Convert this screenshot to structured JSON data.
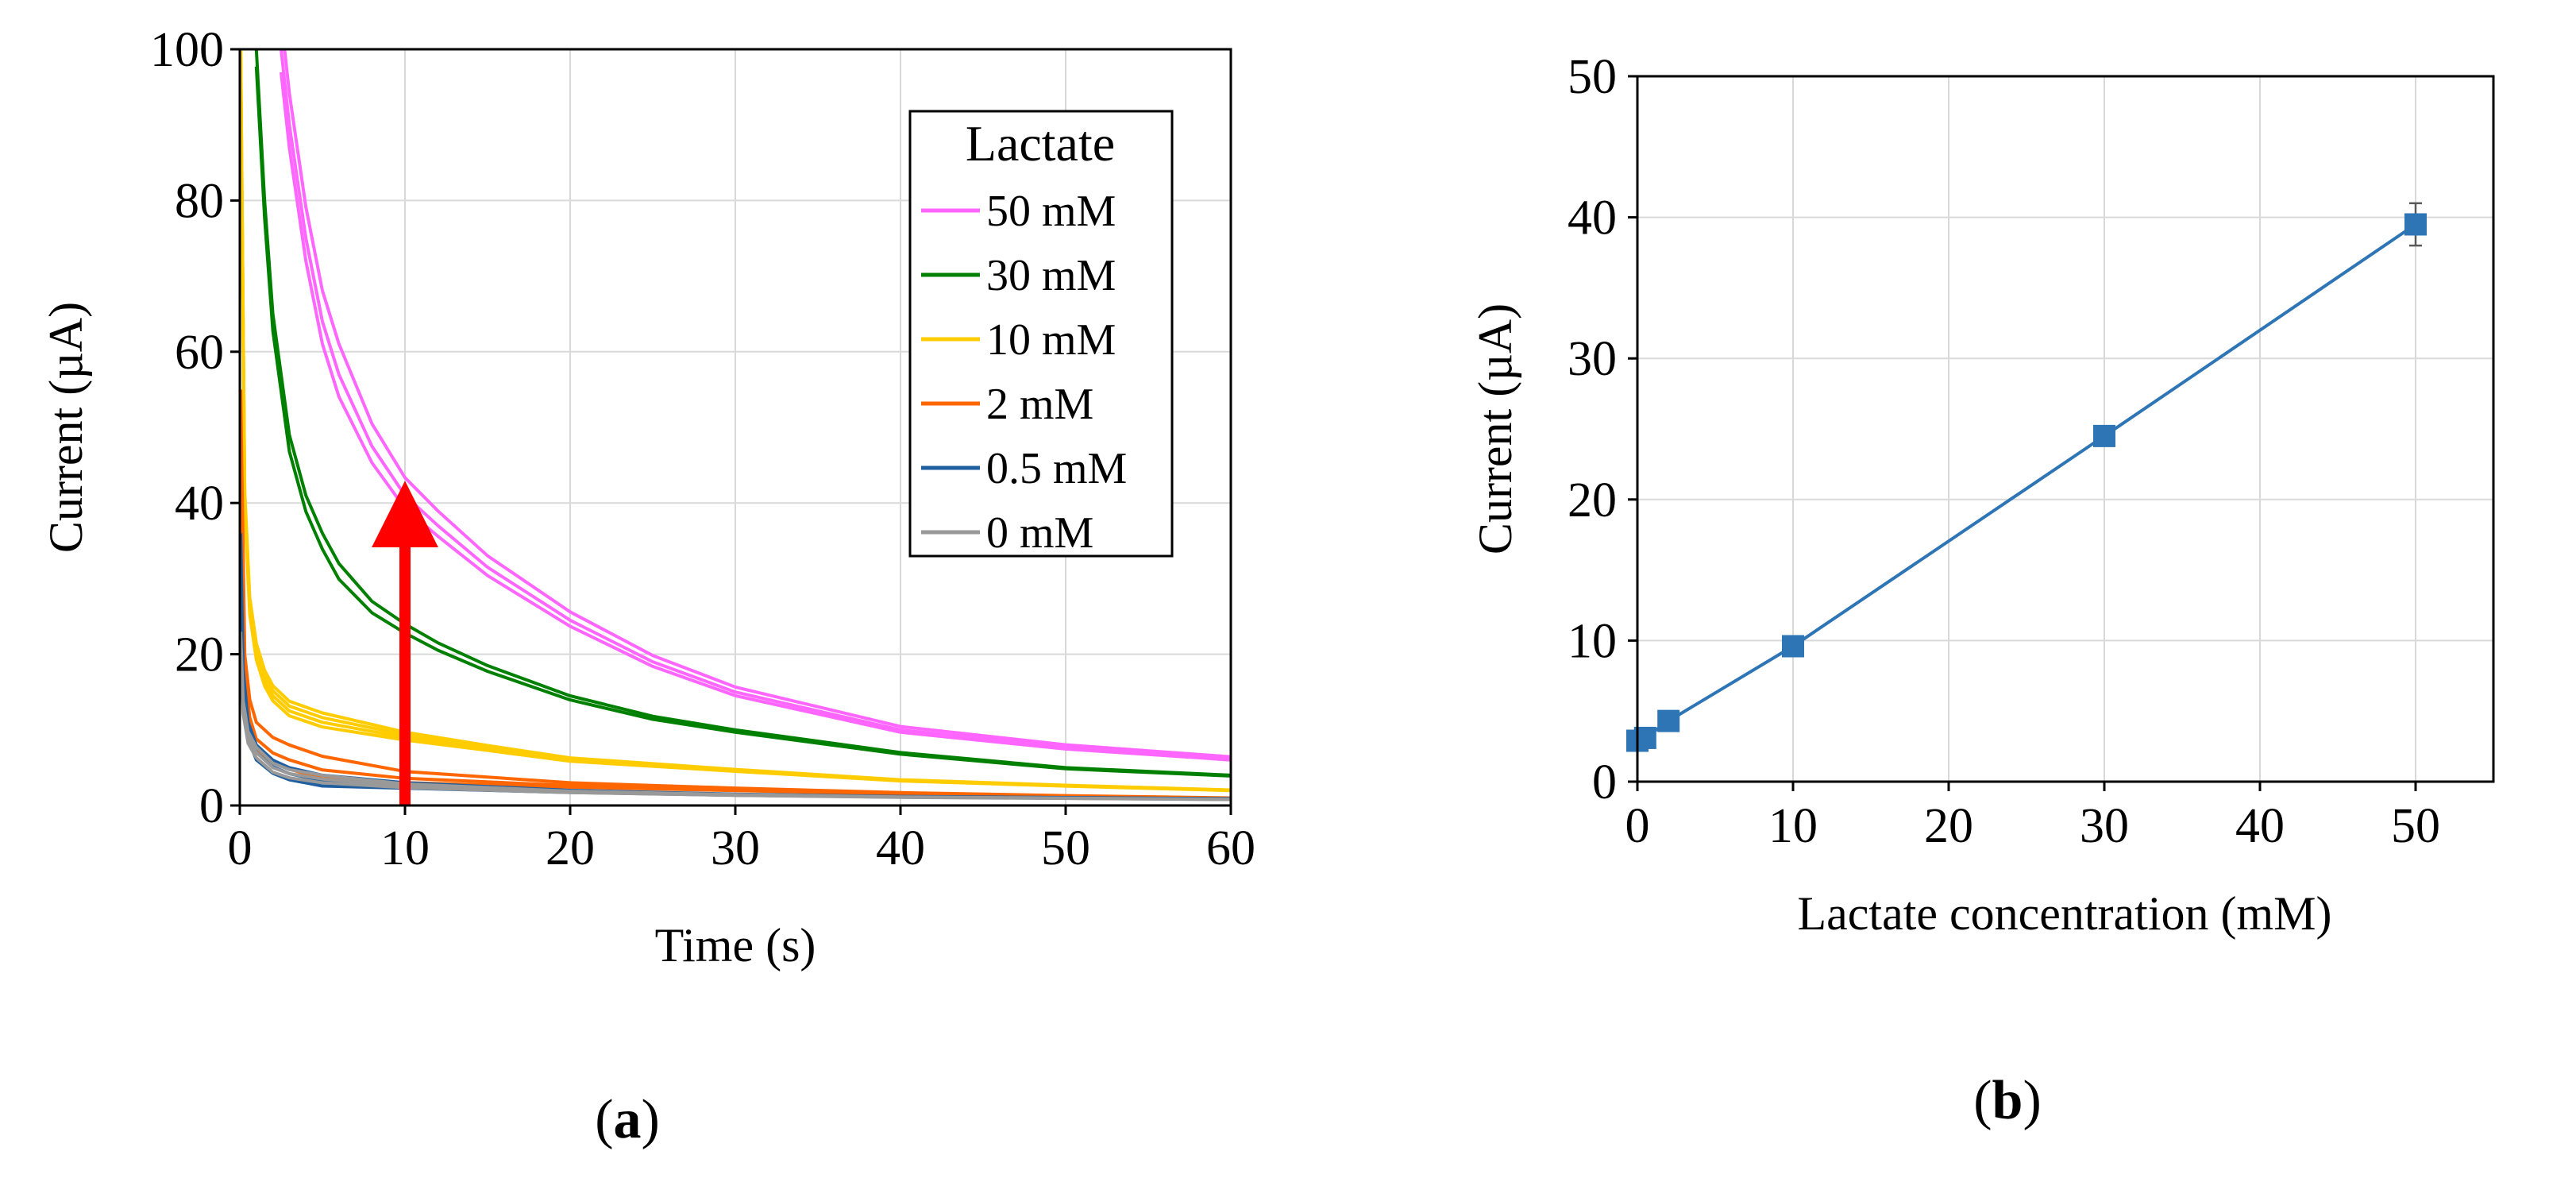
{
  "figure": {
    "panels": [
      {
        "label_open": "(",
        "label_letter": "a",
        "label_close": ")"
      },
      {
        "label_open": "(",
        "label_letter": "b",
        "label_close": ")"
      }
    ]
  },
  "chart_data": [
    {
      "type": "line",
      "title": "",
      "xlabel": "Time (s)",
      "ylabel": "Current (µA)",
      "xlim": [
        0,
        60
      ],
      "ylim": [
        0,
        100
      ],
      "xticks": [
        "0",
        "10",
        "20",
        "30",
        "40",
        "50",
        "60"
      ],
      "yticks": [
        "0",
        "20",
        "40",
        "60",
        "80",
        "100"
      ],
      "grid": true,
      "legend": {
        "title": "Lactate",
        "position": "top-right"
      },
      "series": [
        {
          "name": "50 mM",
          "color": "#ff66ff",
          "x": [
            2.5,
            3,
            4,
            5,
            6,
            8,
            10,
            12,
            15,
            20,
            25,
            30,
            40,
            50,
            60
          ],
          "y": [
            100,
            90,
            75,
            64,
            57,
            47.5,
            41,
            37,
            31.5,
            24.5,
            19,
            15,
            10,
            7.7,
            6.2
          ],
          "replicate_offsets": [
            0,
            2.2,
            -1.6
          ]
        },
        {
          "name": "30 mM",
          "color": "#008000",
          "x": [
            1,
            1.5,
            2,
            3,
            4,
            5,
            6,
            8,
            10,
            12,
            15,
            20,
            25,
            30,
            40,
            50,
            60
          ],
          "y": [
            100,
            80,
            65,
            49,
            41,
            36,
            32,
            27,
            24,
            21.5,
            18.5,
            14.5,
            11.8,
            10,
            7,
            5,
            4
          ],
          "replicate_offsets": [
            0,
            -1.2
          ]
        },
        {
          "name": "10 mM",
          "color": "#ffcc00",
          "x": [
            0.05,
            0.3,
            0.6,
            1,
            1.5,
            2,
            3,
            5,
            10,
            15,
            20,
            30,
            40,
            50,
            60
          ],
          "y": [
            100,
            40,
            26,
            20,
            16.5,
            14.5,
            12.5,
            11,
            9,
            7.5,
            6,
            4.6,
            3.3,
            2.6,
            2
          ],
          "replicate_offsets": [
            0,
            0.45,
            -0.45,
            0.9
          ]
        },
        {
          "name": "2 mM",
          "color": "#ff6600",
          "x": [
            0.05,
            0.3,
            0.6,
            1,
            2,
            3,
            5,
            10,
            20,
            30,
            40,
            50,
            60
          ],
          "y": [
            55,
            20,
            14,
            11,
            9,
            8,
            6.5,
            4.5,
            3,
            2.3,
            1.7,
            1.3,
            1
          ],
          "replicate_offsets": [
            0,
            -1.6,
            -2.6
          ]
        },
        {
          "name": "0.5 mM",
          "color": "#1f5fa0",
          "x": [
            0.05,
            0.2,
            0.5,
            1,
            2,
            3,
            5,
            10,
            20,
            30,
            40,
            60
          ],
          "y": [
            36,
            18,
            11,
            8,
            6,
            5,
            4,
            3,
            2,
            1.5,
            1.2,
            0.9
          ],
          "replicate_offsets": [
            0,
            -0.8,
            -1.6
          ]
        },
        {
          "name": "0 mM",
          "color": "#999999",
          "x": [
            0.05,
            0.2,
            0.5,
            1,
            2,
            3,
            5,
            10,
            20,
            30,
            40,
            60
          ],
          "y": [
            22,
            13,
            9,
            7,
            5,
            4.2,
            3.5,
            2.6,
            1.8,
            1.4,
            1.1,
            0.8
          ],
          "replicate_offsets": [
            0,
            -0.6,
            0.6
          ]
        }
      ],
      "annotations": [
        {
          "type": "arrow",
          "color": "#ff0000",
          "x": 10,
          "y_from": 0,
          "y_to": 40
        }
      ]
    },
    {
      "type": "line",
      "title": "",
      "xlabel": "Lactate concentration (mM)",
      "ylabel": "Current (µA)",
      "xlim": [
        0,
        55
      ],
      "ylim": [
        0,
        50
      ],
      "xticks": [
        "0",
        "10",
        "20",
        "30",
        "40",
        "50"
      ],
      "yticks": [
        "0",
        "10",
        "20",
        "30",
        "40",
        "50"
      ],
      "grid": true,
      "series": [
        {
          "name": "Current",
          "color": "#2e75b6",
          "x": [
            0,
            0.5,
            2,
            10,
            30,
            50
          ],
          "y": [
            2.9,
            3.1,
            4.3,
            9.6,
            24.5,
            39.5
          ],
          "error": [
            0.2,
            0.2,
            0.3,
            0.4,
            0.5,
            1.5
          ]
        }
      ]
    }
  ]
}
